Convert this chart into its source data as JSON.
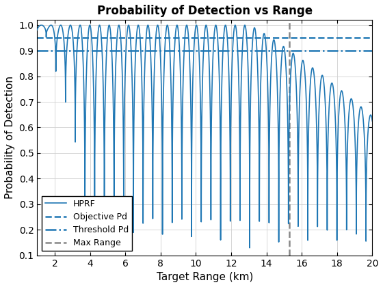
{
  "title": "Probability of Detection vs Range",
  "xlabel": "Target Range (km)",
  "ylabel": "Probability of Detection",
  "xlim": [
    1,
    20
  ],
  "ylim": [
    0.1,
    1.02
  ],
  "yticks": [
    0.1,
    0.2,
    0.3,
    0.4,
    0.5,
    0.6,
    0.7,
    0.8,
    0.9,
    1.0
  ],
  "xticks": [
    2,
    4,
    6,
    8,
    10,
    12,
    14,
    16,
    18,
    20
  ],
  "objective_pd": 0.95,
  "threshold_pd": 0.9,
  "max_range": 15.3,
  "hprf_color": "#1f77b4",
  "ref_line_color": "#1f77b4",
  "max_range_color": "#888888",
  "legend_labels": [
    "HPRF",
    "Objective Pd",
    "Threshold Pd",
    "Max Range"
  ],
  "figsize": [
    5.6,
    4.2
  ],
  "dpi": 100
}
